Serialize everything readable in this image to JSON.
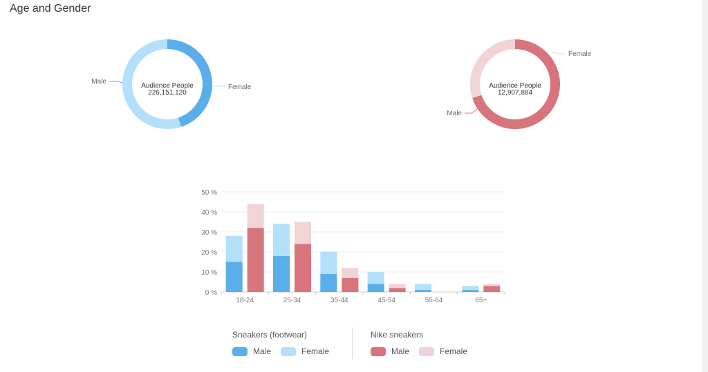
{
  "header": {
    "title": "Age and Gender"
  },
  "colors": {
    "blue_male": "#5aaeea",
    "blue_female": "#b3e0fb",
    "red_male": "#d8747b",
    "red_female": "#f1d4d6"
  },
  "donuts": [
    {
      "center_label": "Audience People",
      "center_value": "226,151,120",
      "slices": [
        {
          "label": "Male",
          "value": 0.45,
          "color": "#5aaeea"
        },
        {
          "label": "Female",
          "value": 0.55,
          "color": "#b3e0fb"
        }
      ]
    },
    {
      "center_label": "Audience People",
      "center_value": "12,907,884",
      "slices": [
        {
          "label": "Male",
          "value": 0.7,
          "color": "#d8747b"
        },
        {
          "label": "Female",
          "value": 0.3,
          "color": "#f1d4d6"
        }
      ]
    }
  ],
  "chart_data": [
    {
      "type": "pie",
      "categories": [
        "Male",
        "Female"
      ],
      "values": [
        45,
        55
      ],
      "center_text": [
        "Audience People",
        "226,151,120"
      ]
    },
    {
      "type": "pie",
      "categories": [
        "Male",
        "Female"
      ],
      "values": [
        70,
        30
      ],
      "center_text": [
        "Audience People",
        "12,907,884"
      ]
    },
    {
      "type": "bar",
      "stacked": true,
      "categories": [
        "18-24",
        "25-34",
        "35-44",
        "45-54",
        "55-64",
        "65+"
      ],
      "groups": [
        {
          "name": "Sneakers (footwear)",
          "series": [
            {
              "name": "Male",
              "values": [
                15,
                18,
                9,
                4,
                1,
                1
              ],
              "color": "#5aaeea"
            },
            {
              "name": "Female",
              "values": [
                13,
                16,
                11,
                6,
                3,
                2
              ],
              "color": "#b3e0fb"
            }
          ]
        },
        {
          "name": "Nike sneakers",
          "series": [
            {
              "name": "Male",
              "values": [
                32,
                24,
                7,
                2,
                0,
                3
              ],
              "color": "#d8747b"
            },
            {
              "name": "Female",
              "values": [
                12,
                11,
                5,
                2,
                0,
                1
              ],
              "color": "#f1d4d6"
            }
          ]
        }
      ],
      "yticks": [
        "0 %",
        "10 %",
        "20 %",
        "30 %",
        "40 %",
        "50 %"
      ],
      "ylim": [
        0,
        50
      ],
      "grid": true
    }
  ],
  "legend": {
    "groups": [
      {
        "title": "Sneakers (footwear)",
        "items": [
          {
            "label": "Male",
            "color": "#5aaeea"
          },
          {
            "label": "Female",
            "color": "#b3e0fb"
          }
        ]
      },
      {
        "title": "Nike sneakers",
        "items": [
          {
            "label": "Male",
            "color": "#d8747b"
          },
          {
            "label": "Female",
            "color": "#f1d4d6"
          }
        ]
      }
    ]
  }
}
